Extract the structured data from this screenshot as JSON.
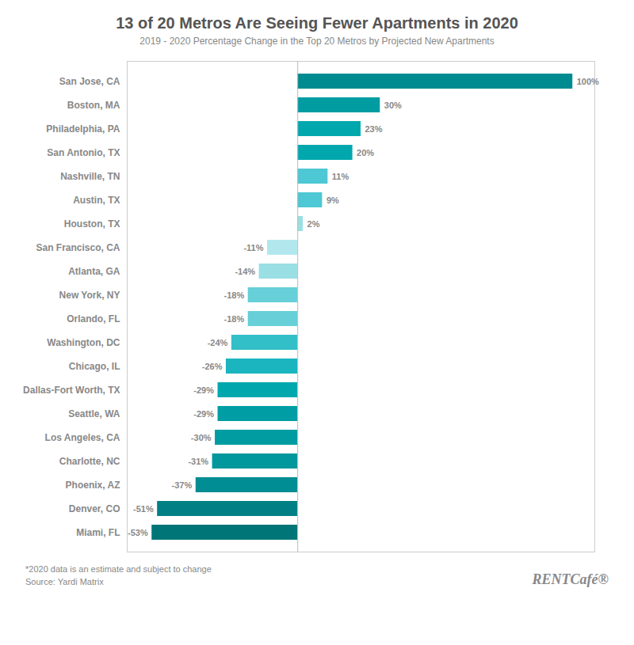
{
  "chart_data": {
    "type": "bar",
    "orientation": "horizontal",
    "title": "13 of 20 Metros Are Seeing Fewer Apartments in 2020",
    "subtitle": "2019 - 2020 Percentage Change in the Top 20 Metros by Projected New Apartments",
    "categories": [
      "San Jose, CA",
      "Boston, MA",
      "Philadelphia, PA",
      "San Antonio, TX",
      "Nashville, TN",
      "Austin, TX",
      "Houston, TX",
      "San Francisco, CA",
      "Atlanta, GA",
      "New York, NY",
      "Orlando, FL",
      "Washington, DC",
      "Chicago, IL",
      "Dallas-Fort Worth, TX",
      "Seattle, WA",
      "Los Angeles, CA",
      "Charlotte, NC",
      "Phoenix, AZ",
      "Denver, CO",
      "Miami, FL"
    ],
    "values": [
      100,
      30,
      23,
      20,
      11,
      9,
      2,
      -11,
      -14,
      -18,
      -18,
      -24,
      -26,
      -29,
      -29,
      -30,
      -31,
      -37,
      -51,
      -53
    ],
    "value_labels": [
      "100%",
      "30%",
      "23%",
      "20%",
      "11%",
      "9%",
      "2%",
      "-11%",
      "-14%",
      "-18%",
      "-18%",
      "-24%",
      "-26%",
      "-29%",
      "-29%",
      "-30%",
      "-31%",
      "-37%",
      "-51%",
      "-53%"
    ],
    "colors": [
      "#008b91",
      "#009ca2",
      "#00a8ae",
      "#00a8ae",
      "#4dc8d4",
      "#4dc8d4",
      "#99dfe4",
      "#b2e8ed",
      "#99dfe4",
      "#66cfd8",
      "#66cfd8",
      "#33bfc8",
      "#1ab5bf",
      "#00a8ae",
      "#009ea4",
      "#009ca2",
      "#00979d",
      "#008d93",
      "#007f85",
      "#007578"
    ],
    "xlim": [
      -62,
      108
    ],
    "data_labels": true,
    "tick_labels": "y",
    "grid": false,
    "annotations": [
      "*2020 data is an estimate and subject to change",
      "Source: Yardi Matrix",
      "RENTCafé®"
    ]
  }
}
